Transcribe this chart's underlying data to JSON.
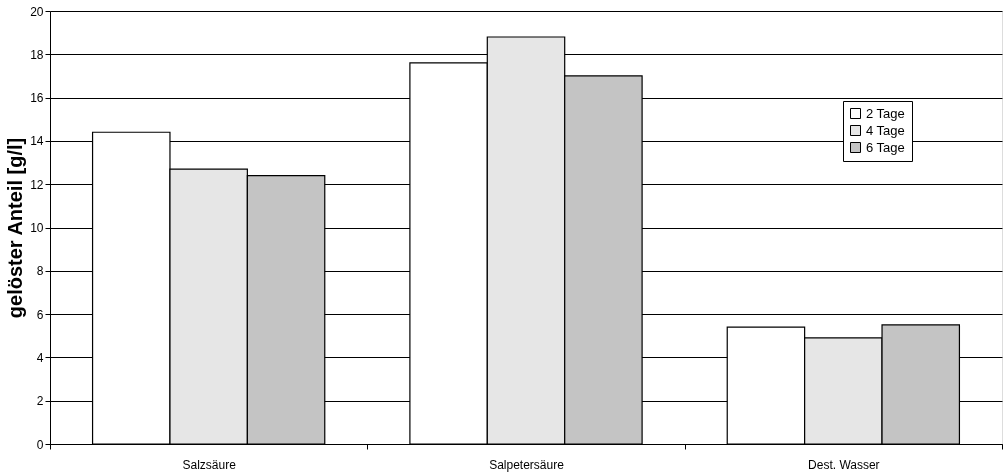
{
  "chart_data": {
    "type": "bar",
    "ylabel": "gelöster Anteil [g/l]",
    "categories": [
      "Salzsäure",
      "Salpetersäure",
      "Dest. Wasser"
    ],
    "series": [
      {
        "name": "2 Tage",
        "color": "#ffffff",
        "values": [
          14.4,
          17.6,
          5.4
        ]
      },
      {
        "name": "4 Tage",
        "color": "#e6e6e6",
        "values": [
          12.7,
          18.8,
          4.9
        ]
      },
      {
        "name": "6 Tage",
        "color": "#c4c4c4",
        "values": [
          12.4,
          17.0,
          5.5
        ]
      }
    ],
    "ylim": [
      0,
      20
    ],
    "yticks": [
      0,
      2,
      4,
      6,
      8,
      10,
      12,
      14,
      16,
      18,
      20
    ],
    "grid": "y",
    "legend": "top right"
  }
}
